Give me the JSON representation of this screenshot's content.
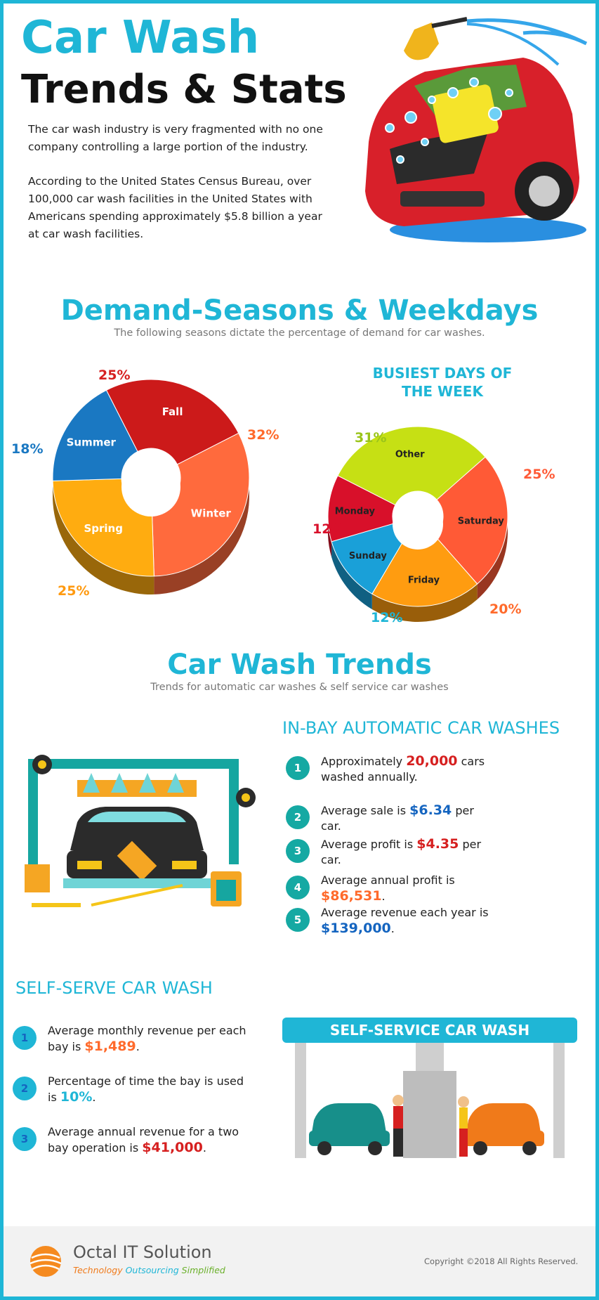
{
  "header": {
    "title_line1": "Car Wash",
    "title_line2": "Trends & Stats",
    "intro_p1": "The car wash industry is very fragmented with no one company controlling a large portion of the industry.",
    "intro_p2": "According to the United States Census Bureau, over 100,000 car wash facilities in the United States with Americans spending approximately $5.8 billion a year at car wash facilities."
  },
  "demand": {
    "title": "Demand-Seasons & Weekdays",
    "subtitle": "The following seasons dictate the percentage of demand for car washes.",
    "weekdays_title_line1": "BUSIEST DAYS OF",
    "weekdays_title_line2": "THE WEEK"
  },
  "chart_data": [
    {
      "type": "pie",
      "title": "",
      "categories": [
        "Fall",
        "Winter",
        "Spring",
        "Summer"
      ],
      "values": [
        25,
        32,
        25,
        18
      ],
      "labels": [
        "25%",
        "32%",
        "25%",
        "18%"
      ],
      "colors": [
        "#cc1a1a",
        "#ff6a3d",
        "#ffac10",
        "#1a78c2"
      ],
      "donut": true
    },
    {
      "type": "pie",
      "title": "BUSIEST DAYS OF THE WEEK",
      "categories": [
        "Other",
        "Saturday",
        "Friday",
        "Sunday",
        "Monday"
      ],
      "values": [
        31,
        25,
        20,
        12,
        12
      ],
      "labels": [
        "31%",
        "25%",
        "20%",
        "12%",
        "12%"
      ],
      "colors": [
        "#c6e014",
        "#ff5a36",
        "#ff9c10",
        "#1aa0d8",
        "#d8102a"
      ],
      "donut": true
    }
  ],
  "trends": {
    "title": "Car Wash Trends",
    "subtitle": "Trends for automatic car washes & self service car washes"
  },
  "inbay": {
    "title": "IN-BAY AUTOMATIC CAR WASHES",
    "items": [
      {
        "n": "1",
        "pre": "Approximately ",
        "value": "20,000",
        "post": " cars washed annually."
      },
      {
        "n": "2",
        "pre": "Average sale is ",
        "value": "$6.34",
        "post": " per car."
      },
      {
        "n": "3",
        "pre": "Average profit is ",
        "value": "$4.35",
        "post": " per car."
      },
      {
        "n": "4",
        "pre": "Average annual profit is ",
        "value": "$86,531",
        "post": "."
      },
      {
        "n": "5",
        "pre": "Average revenue each year is ",
        "value": "$139,000",
        "post": "."
      }
    ]
  },
  "selfserve": {
    "title": "SELF-SERVE CAR WASH",
    "banner": "SELF-SERVICE CAR WASH",
    "items": [
      {
        "n": "1",
        "pre": "Average monthly revenue per each bay is ",
        "value": "$1,489",
        "post": "."
      },
      {
        "n": "2",
        "pre": "Percentage of time the bay is used is ",
        "value": "10%",
        "post": "."
      },
      {
        "n": "3",
        "pre": "Average annual revenue for a two bay operation is ",
        "value": "$41,000",
        "post": "."
      }
    ]
  },
  "footer": {
    "brand": "Octal IT Solution",
    "tagline_1": "Technology",
    "tagline_2": "Outsourcing",
    "tagline_3": "Simplified",
    "copyright": "Copyright ©2018  All Rights Reserved."
  },
  "colors": {
    "accent": "#1fb6d6",
    "teal": "#15a9a3",
    "red": "#d62020",
    "orange": "#ff6a2b",
    "blue": "#1565c0"
  }
}
